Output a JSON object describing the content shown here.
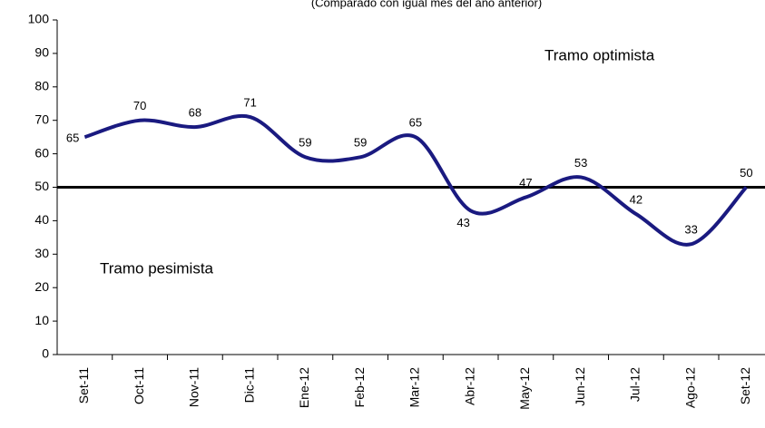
{
  "chart_data": {
    "type": "line",
    "subtitle": "(Comparado con igual mes del año anterior)",
    "categories": [
      "Set-11",
      "Oct-11",
      "Nov-11",
      "Dic-11",
      "Ene-12",
      "Feb-12",
      "Mar-12",
      "Abr-12",
      "May-12",
      "Jun-12",
      "Jul-12",
      "Ago-12",
      "Set-12"
    ],
    "series": [
      {
        "name": "Índice",
        "color": "#1a1a80",
        "values": [
          65,
          70,
          68,
          71,
          59,
          59,
          65,
          43,
          47,
          53,
          42,
          33,
          50
        ]
      }
    ],
    "ylim": [
      0,
      100
    ],
    "yticks": [
      0,
      10,
      20,
      30,
      40,
      50,
      60,
      70,
      80,
      90,
      100
    ],
    "reference_line": 50,
    "annotations": [
      "Tramo optimista",
      "Tramo pesimista"
    ]
  }
}
